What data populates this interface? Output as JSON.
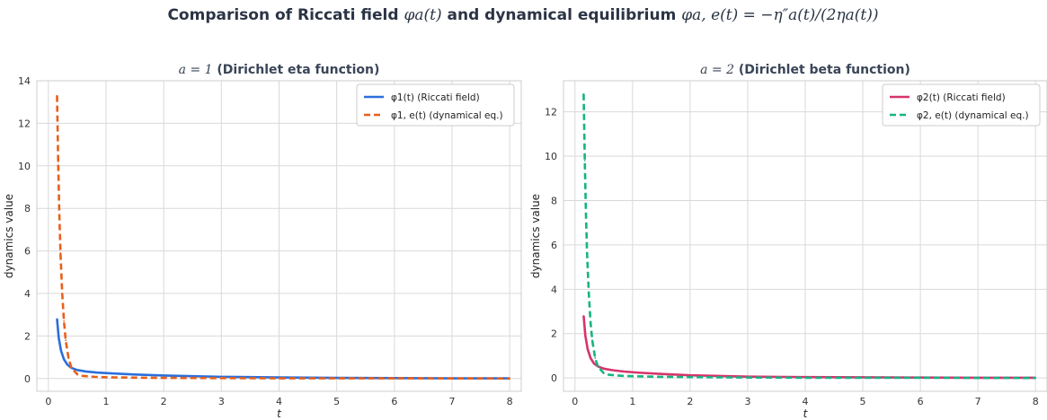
{
  "figure": {
    "suptitle_pre": "Comparison of Riccati field ",
    "suptitle_phi": "φa(t)",
    "suptitle_mid": " and dynamical equilibrium ",
    "suptitle_eq": "φa, e(t) = −η″a(t)/(2ηa(t))"
  },
  "chart_data": [
    {
      "type": "line",
      "title_math": "a = 1",
      "title": "(Dirichlet eta function)",
      "xlabel": "t",
      "ylabel": "dynamics value",
      "xlim": [
        -0.2,
        8.2
      ],
      "ylim": [
        -0.6,
        14
      ],
      "xticks": [
        0,
        1,
        2,
        3,
        4,
        5,
        6,
        7,
        8
      ],
      "yticks": [
        0,
        2,
        4,
        6,
        8,
        10,
        12,
        14
      ],
      "grid": true,
      "legend": "top-right",
      "series": [
        {
          "name": "φ1(t) (Riccati field)",
          "style": "solid",
          "color": "#2a6fdb",
          "x": [
            0.15,
            0.18,
            0.22,
            0.27,
            0.33,
            0.4,
            0.5,
            0.65,
            0.85,
            1.1,
            1.5,
            2.0,
            2.5,
            3.0,
            4.0,
            5.0,
            6.0,
            7.0,
            8.0
          ],
          "y": [
            2.8,
            1.9,
            1.3,
            0.9,
            0.65,
            0.5,
            0.4,
            0.33,
            0.28,
            0.24,
            0.19,
            0.14,
            0.11,
            0.08,
            0.05,
            0.03,
            0.02,
            0.01,
            0.01
          ]
        },
        {
          "name": "φ1, e(t) (dynamical eq.)",
          "style": "dashed",
          "color": "#e8601c",
          "x": [
            0.15,
            0.17,
            0.19,
            0.21,
            0.24,
            0.27,
            0.3,
            0.35,
            0.4,
            0.5,
            0.6,
            0.8,
            1.0,
            1.5,
            2.0,
            3.0,
            4.0,
            6.0,
            8.0
          ],
          "y": [
            13.3,
            10.2,
            7.7,
            5.9,
            4.0,
            2.7,
            1.8,
            0.95,
            0.5,
            0.2,
            0.12,
            0.08,
            0.06,
            0.04,
            0.03,
            0.02,
            0.01,
            0.01,
            0.0
          ]
        }
      ]
    },
    {
      "type": "line",
      "title_math": "a = 2",
      "title": "(Dirichlet beta function)",
      "xlabel": "t",
      "ylabel": "dynamics value",
      "xlim": [
        -0.2,
        8.2
      ],
      "ylim": [
        -0.6,
        13.4
      ],
      "xticks": [
        0,
        1,
        2,
        3,
        4,
        5,
        6,
        7,
        8
      ],
      "yticks": [
        0,
        2,
        4,
        6,
        8,
        10,
        12
      ],
      "grid": true,
      "legend": "top-right",
      "series": [
        {
          "name": "φ2(t) (Riccati field)",
          "style": "solid",
          "color": "#d6336c",
          "x": [
            0.15,
            0.18,
            0.22,
            0.27,
            0.33,
            0.4,
            0.5,
            0.65,
            0.85,
            1.1,
            1.5,
            2.0,
            2.5,
            3.0,
            4.0,
            5.0,
            6.0,
            7.0,
            8.0
          ],
          "y": [
            2.8,
            1.9,
            1.3,
            0.9,
            0.65,
            0.52,
            0.42,
            0.35,
            0.29,
            0.24,
            0.18,
            0.12,
            0.09,
            0.06,
            0.04,
            0.03,
            0.02,
            0.01,
            0.01
          ]
        },
        {
          "name": "φ2, e(t) (dynamical eq.)",
          "style": "dashed",
          "color": "#17b383",
          "x": [
            0.15,
            0.17,
            0.19,
            0.21,
            0.24,
            0.27,
            0.3,
            0.35,
            0.4,
            0.5,
            0.6,
            0.8,
            1.0,
            1.5,
            2.0,
            3.0,
            4.0,
            6.0,
            8.0
          ],
          "y": [
            12.8,
            9.8,
            7.4,
            5.6,
            3.8,
            2.5,
            1.7,
            0.9,
            0.5,
            0.22,
            0.14,
            0.1,
            0.08,
            0.05,
            0.04,
            0.02,
            0.01,
            0.01,
            0.0
          ]
        }
      ]
    }
  ]
}
